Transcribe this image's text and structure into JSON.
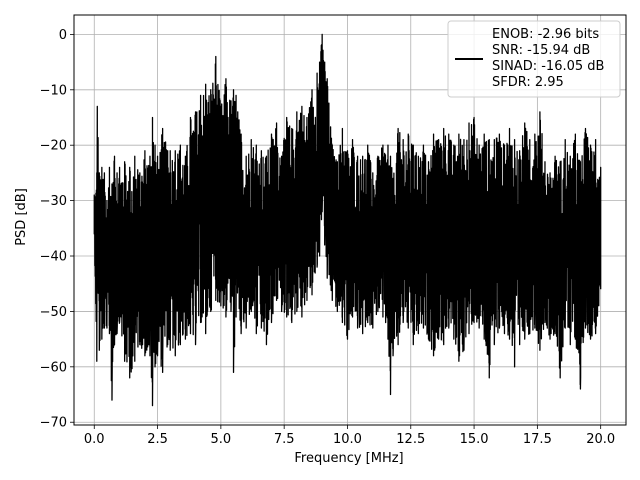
{
  "chart_data": {
    "type": "line",
    "xlabel": "Frequency [MHz]",
    "ylabel": "PSD [dB]",
    "xlim": [
      -0.8,
      21.0
    ],
    "ylim": [
      -70.5,
      3.5
    ],
    "xticks": [
      0.0,
      2.5,
      5.0,
      7.5,
      10.0,
      12.5,
      15.0,
      17.5,
      20.0
    ],
    "xtick_labels": [
      "0.0",
      "2.5",
      "5.0",
      "7.5",
      "10.0",
      "12.5",
      "15.0",
      "17.5",
      "20.0"
    ],
    "yticks": [
      0,
      -10,
      -20,
      -30,
      -40,
      -50,
      -60,
      -70
    ],
    "ytick_labels": [
      "0",
      "−10",
      "−20",
      "−30",
      "−40",
      "−50",
      "−60",
      "−70"
    ],
    "grid": true,
    "legend_position": "top-right",
    "legend": [
      "ENOB: -2.96 bits",
      "SNR: -15.94 dB",
      "SINAD: -16.05 dB",
      "SFDR: 2.95"
    ],
    "series": [
      {
        "color": "#000000",
        "x": [
          0.0,
          0.1,
          0.12,
          0.2,
          0.3,
          0.4,
          0.5,
          0.6,
          0.7,
          0.8,
          0.9,
          1.0,
          1.2,
          1.4,
          1.6,
          1.8,
          2.0,
          2.2,
          2.3,
          2.4,
          2.5,
          2.7,
          2.9,
          3.0,
          3.2,
          3.4,
          3.6,
          3.8,
          4.0,
          4.2,
          4.4,
          4.6,
          4.8,
          5.0,
          5.2,
          5.4,
          5.5,
          5.6,
          5.8,
          6.0,
          6.2,
          6.4,
          6.6,
          6.8,
          7.0,
          7.2,
          7.4,
          7.6,
          7.8,
          8.0,
          8.2,
          8.4,
          8.6,
          8.8,
          8.9,
          9.0,
          9.1,
          9.2,
          9.4,
          9.6,
          9.8,
          10.0,
          10.2,
          10.4,
          10.6,
          10.8,
          11.0,
          11.2,
          11.4,
          11.6,
          11.7,
          11.8,
          12.0,
          12.2,
          12.4,
          12.6,
          12.8,
          13.0,
          13.2,
          13.4,
          13.6,
          13.8,
          14.0,
          14.2,
          14.4,
          14.6,
          14.8,
          15.0,
          15.2,
          15.4,
          15.6,
          15.8,
          16.0,
          16.2,
          16.4,
          16.6,
          16.8,
          17.0,
          17.2,
          17.4,
          17.6,
          17.8,
          18.0,
          18.2,
          18.4,
          18.6,
          18.8,
          19.0,
          19.2,
          19.4,
          19.6,
          19.8,
          20.0
        ],
        "y_upper": [
          -29,
          -25,
          -13,
          -25,
          -24,
          -25,
          -30,
          -24,
          -27,
          -22,
          -25,
          -24,
          -23,
          -24,
          -22,
          -25,
          -21,
          -22,
          -15,
          -20,
          -22,
          -17,
          -21,
          -21,
          -21,
          -20,
          -22,
          -15,
          -14,
          -11,
          -9,
          -10,
          -4,
          -13,
          -8,
          -12,
          -10,
          -11,
          -18,
          -22,
          -19,
          -20,
          -21,
          -22,
          -18,
          -16,
          -22,
          -15,
          -17,
          -14,
          -13,
          -15,
          -10,
          -7,
          -5,
          0,
          -5,
          -8,
          -20,
          -23,
          -17,
          -21,
          -19,
          -22,
          -22,
          -20,
          -25,
          -22,
          -20,
          -20,
          -22,
          -26,
          -17,
          -19,
          -18,
          -20,
          -22,
          -20,
          -23,
          -18,
          -19,
          -17,
          -18,
          -20,
          -18,
          -19,
          -16,
          -15,
          -20,
          -18,
          -19,
          -19,
          -18,
          -20,
          -17,
          -19,
          -21,
          -16,
          -19,
          -18,
          -14,
          -23,
          -25,
          -22,
          -23,
          -19,
          -22,
          -18,
          -23,
          -17,
          -20,
          -19,
          -24
        ],
        "y_lower": [
          -36,
          -59,
          -40,
          -57,
          -55,
          -53,
          -53,
          -54,
          -66,
          -56,
          -54,
          -52,
          -59,
          -62,
          -59,
          -56,
          -58,
          -58,
          -67,
          -60,
          -58,
          -61,
          -56,
          -57,
          -58,
          -56,
          -55,
          -54,
          -56,
          -52,
          -54,
          -50,
          -48,
          -49,
          -51,
          -50,
          -61,
          -51,
          -54,
          -53,
          -50,
          -54,
          -53,
          -56,
          -52,
          -48,
          -50,
          -51,
          -52,
          -50,
          -51,
          -48,
          -47,
          -42,
          -40,
          -32,
          -38,
          -44,
          -48,
          -50,
          -52,
          -55,
          -51,
          -53,
          -54,
          -52,
          -53,
          -50,
          -51,
          -55,
          -65,
          -58,
          -56,
          -52,
          -53,
          -56,
          -54,
          -53,
          -55,
          -58,
          -55,
          -56,
          -53,
          -55,
          -59,
          -57,
          -54,
          -52,
          -53,
          -55,
          -62,
          -56,
          -53,
          -54,
          -55,
          -60,
          -56,
          -55,
          -54,
          -53,
          -57,
          -52,
          -55,
          -54,
          -62,
          -53,
          -56,
          -55,
          -64,
          -53,
          -55,
          -54,
          -46
        ]
      }
    ]
  }
}
